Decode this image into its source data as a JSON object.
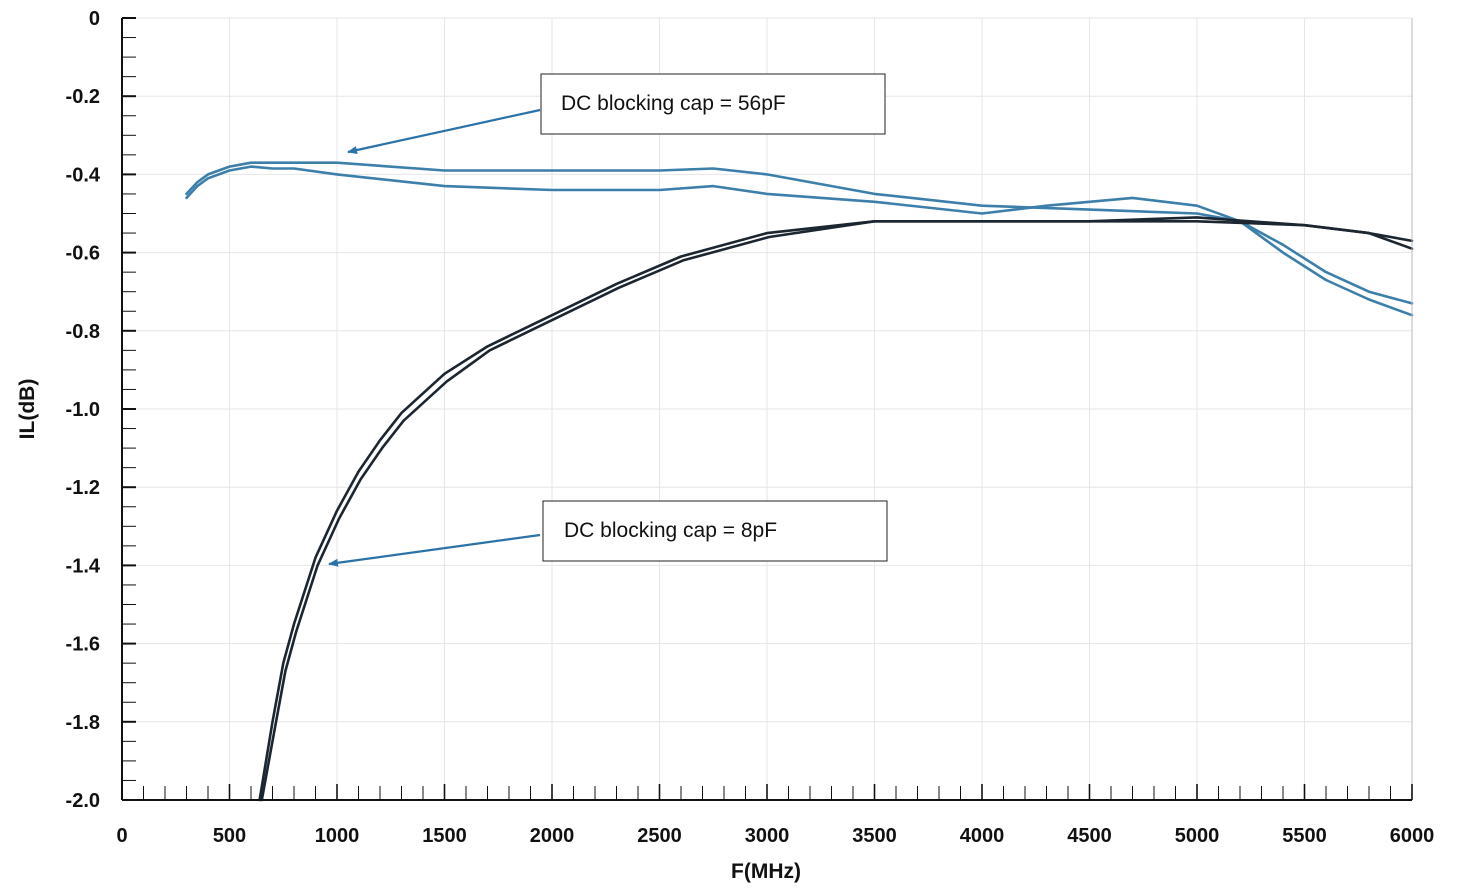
{
  "chart_data": {
    "type": "line",
    "title": "",
    "xlabel": "F(MHz)",
    "ylabel": "IL(dB)",
    "xlim": [
      0,
      6000
    ],
    "ylim": [
      -2.0,
      0
    ],
    "xticks": [
      0,
      500,
      1000,
      1500,
      2000,
      2500,
      3000,
      3500,
      4000,
      4500,
      5000,
      5500,
      6000
    ],
    "yticks": [
      0,
      -0.2,
      -0.4,
      -0.6,
      -0.8,
      -1.0,
      -1.2,
      -1.4,
      -1.6,
      -1.8,
      -2.0
    ],
    "xtick_labels": [
      "0",
      "500",
      "1000",
      "1500",
      "2000",
      "2500",
      "3000",
      "3500",
      "4000",
      "4500",
      "5000",
      "5500",
      "6000"
    ],
    "ytick_labels": [
      "0",
      "-0.2",
      "-0.4",
      "-0.6",
      "-0.8",
      "-1.0",
      "-1.2",
      "-1.4",
      "-1.6",
      "-1.8",
      "-2.0"
    ],
    "grid": true,
    "colors": {
      "blue": "#3d7fab",
      "dark": "#1b2631",
      "arrow": "#2b72a8"
    },
    "series": [
      {
        "color": "#3d7fab",
        "x": [
          300,
          350,
          400,
          500,
          600,
          700,
          800,
          1000,
          1500,
          2000,
          2500,
          2750,
          3000,
          3500,
          4000,
          4500,
          5000,
          5200,
          5400,
          5600,
          5800,
          6000
        ],
        "y": [
          -0.45,
          -0.42,
          -0.4,
          -0.38,
          -0.37,
          -0.37,
          -0.37,
          -0.37,
          -0.39,
          -0.39,
          -0.39,
          -0.385,
          -0.4,
          -0.45,
          -0.48,
          -0.49,
          -0.5,
          -0.52,
          -0.58,
          -0.65,
          -0.7,
          -0.73
        ]
      },
      {
        "color": "#3d7fab",
        "x": [
          300,
          350,
          400,
          500,
          600,
          700,
          800,
          1000,
          1500,
          2000,
          2500,
          2750,
          3000,
          3500,
          4000,
          4300,
          4700,
          5000,
          5200,
          5400,
          5600,
          5800,
          6000
        ],
        "y": [
          -0.46,
          -0.43,
          -0.41,
          -0.39,
          -0.38,
          -0.385,
          -0.385,
          -0.4,
          -0.43,
          -0.44,
          -0.44,
          -0.43,
          -0.45,
          -0.47,
          -0.5,
          -0.48,
          -0.46,
          -0.48,
          -0.52,
          -0.6,
          -0.67,
          -0.72,
          -0.76
        ]
      },
      {
        "color": "#1b2631",
        "x": [
          640,
          700,
          750,
          800,
          900,
          1000,
          1100,
          1200,
          1300,
          1500,
          1700,
          2000,
          2300,
          2600,
          3000,
          3500,
          4000,
          4500,
          5000,
          5500,
          5800,
          6000
        ],
        "y": [
          -2.0,
          -1.8,
          -1.65,
          -1.55,
          -1.38,
          -1.26,
          -1.16,
          -1.08,
          -1.01,
          -0.91,
          -0.84,
          -0.76,
          -0.68,
          -0.61,
          -0.55,
          -0.52,
          -0.52,
          -0.52,
          -0.52,
          -0.53,
          -0.55,
          -0.57
        ]
      },
      {
        "color": "#1b2631",
        "x": [
          650,
          710,
          760,
          810,
          910,
          1010,
          1110,
          1210,
          1310,
          1510,
          1710,
          2010,
          2310,
          2610,
          3010,
          3500,
          4000,
          4500,
          5000,
          5500,
          5800,
          6000
        ],
        "y": [
          -2.0,
          -1.82,
          -1.67,
          -1.57,
          -1.4,
          -1.28,
          -1.18,
          -1.1,
          -1.03,
          -0.93,
          -0.85,
          -0.77,
          -0.69,
          -0.62,
          -0.56,
          -0.52,
          -0.52,
          -0.52,
          -0.51,
          -0.53,
          -0.55,
          -0.59
        ]
      }
    ],
    "annotations": [
      {
        "text": "DC blocking cap = 56pF",
        "point": [
          1000,
          -0.34
        ]
      },
      {
        "text": "DC blocking cap = 8pF",
        "point": [
          950,
          -1.4
        ]
      }
    ]
  }
}
